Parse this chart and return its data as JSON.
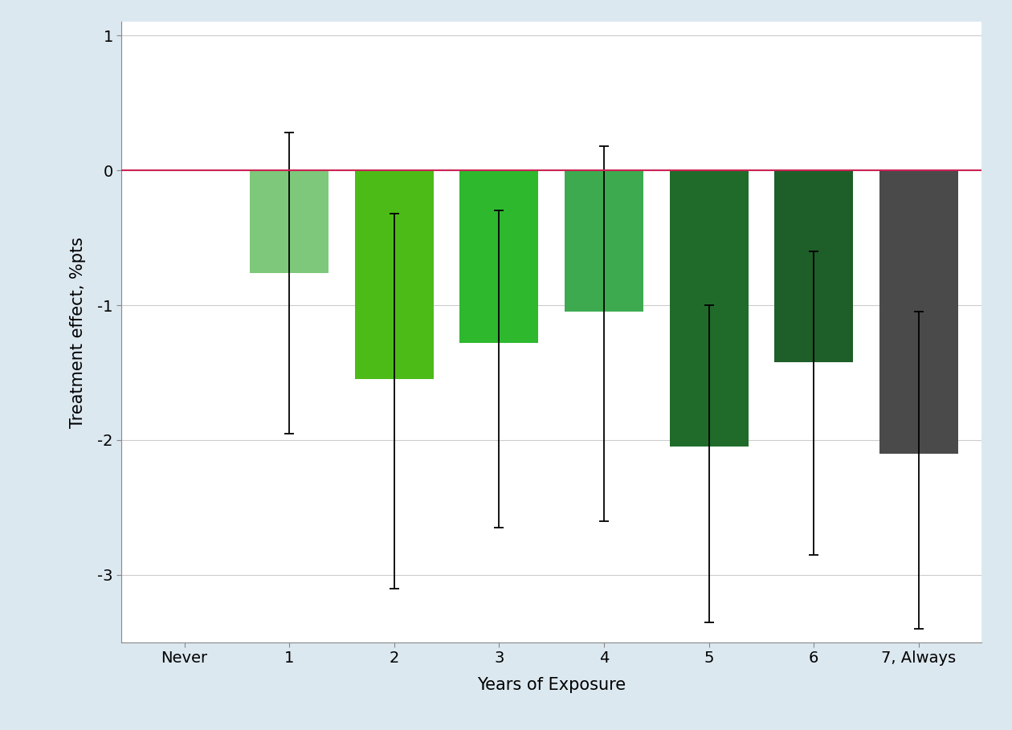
{
  "categories": [
    "Never",
    "1",
    "2",
    "3",
    "4",
    "5",
    "6",
    "7, Always"
  ],
  "bar_values": [
    null,
    -0.76,
    -1.55,
    -1.28,
    -1.05,
    -2.05,
    -1.42,
    -2.1
  ],
  "ci_lower": [
    null,
    -1.95,
    -3.1,
    -2.65,
    -2.6,
    -3.35,
    -2.85,
    -3.4
  ],
  "ci_upper": [
    null,
    0.28,
    -0.32,
    -0.3,
    0.18,
    -1.0,
    -0.6,
    -1.05
  ],
  "bar_colors": [
    "none",
    "#7DC87A",
    "#4CBB17",
    "#2EB82E",
    "#3DAA50",
    "#216B2A",
    "#1E5E28",
    "#4A4A4A"
  ],
  "ylabel": "Treatment effect, %pts",
  "xlabel": "Years of Exposure",
  "ylim": [
    -3.5,
    1.1
  ],
  "yticks": [
    1,
    0,
    -1,
    -2,
    -3
  ],
  "background_color": "#dce8f0",
  "plot_background": "#ffffff",
  "zero_line_color": "#cc2255",
  "grid_color": "#cccccc",
  "bar_width": 0.75,
  "capsize": 4
}
